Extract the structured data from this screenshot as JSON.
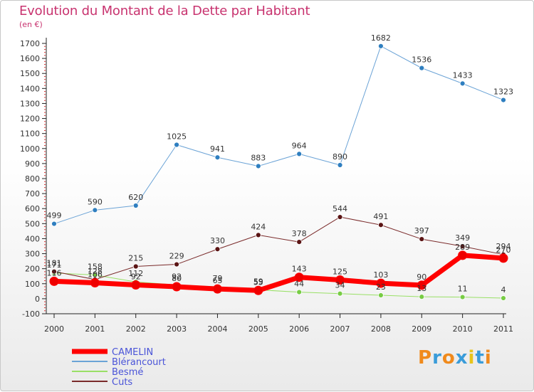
{
  "title": "Evolution du Montant de la Dette par Habitant",
  "subtitle": "(en €)",
  "logo": {
    "text": "Proxiti",
    "colors": [
      "#f08a1c",
      "#3a9cd9",
      "#f08a1c",
      "#3a9cd9",
      "#e8c41a",
      "#3a9cd9",
      "#f08a1c"
    ]
  },
  "chart_data": {
    "type": "line",
    "title": "Evolution du Montant de la Dette par Habitant",
    "ylabel": "(en €)",
    "xlabel": "",
    "x": [
      "2000",
      "2001",
      "2002",
      "2003",
      "2004",
      "2005",
      "2006",
      "2007",
      "2008",
      "2009",
      "2010",
      "2011"
    ],
    "ylim": [
      -100,
      1700
    ],
    "yticks": [
      -100,
      0,
      100,
      200,
      300,
      400,
      500,
      600,
      700,
      800,
      900,
      1000,
      1100,
      1200,
      1300,
      1400,
      1500,
      1600,
      1700
    ],
    "grid": false,
    "legend_position": "bottom-left",
    "series": [
      {
        "name": "CAMELIN",
        "color": "#ff0000",
        "width": 7,
        "values": [
          116,
          106,
          92,
          80,
          65,
          55,
          143,
          125,
          103,
          90,
          289,
          270
        ],
        "labels": [
          "116",
          "106",
          "92",
          "80",
          "65",
          "55",
          "143",
          "125",
          "103",
          "90",
          "289",
          "270"
        ]
      },
      {
        "name": "Blérancourt",
        "color": "#6ba3d6",
        "width": 1,
        "markerColor": "#2f7fc0",
        "values": [
          499,
          590,
          620,
          1025,
          941,
          883,
          964,
          890,
          1682,
          1536,
          1433,
          1323
        ],
        "labels": [
          "499",
          "590",
          "620",
          "1025",
          "941",
          "883",
          "964",
          "890",
          "1682",
          "1536",
          "1433",
          "1323"
        ]
      },
      {
        "name": "Besmé",
        "color": "#99e066",
        "width": 1,
        "markerColor": "#77cc44",
        "values": [
          171,
          158,
          112,
          92,
          79,
          59,
          44,
          34,
          23,
          13,
          11,
          4
        ],
        "labels": [
          "171",
          "158",
          "112",
          "92",
          "79",
          "59",
          "44",
          "34",
          "23",
          "13",
          "11",
          "4"
        ]
      },
      {
        "name": "Cuts",
        "color": "#7a2a2a",
        "width": 1,
        "markerColor": "#5a1414",
        "values": [
          181,
          128,
          215,
          229,
          330,
          424,
          378,
          544,
          491,
          397,
          349,
          294
        ],
        "labels": [
          "181",
          "128",
          "215",
          "229",
          "330",
          "424",
          "378",
          "544",
          "491",
          "397",
          "349",
          "294"
        ]
      }
    ]
  }
}
